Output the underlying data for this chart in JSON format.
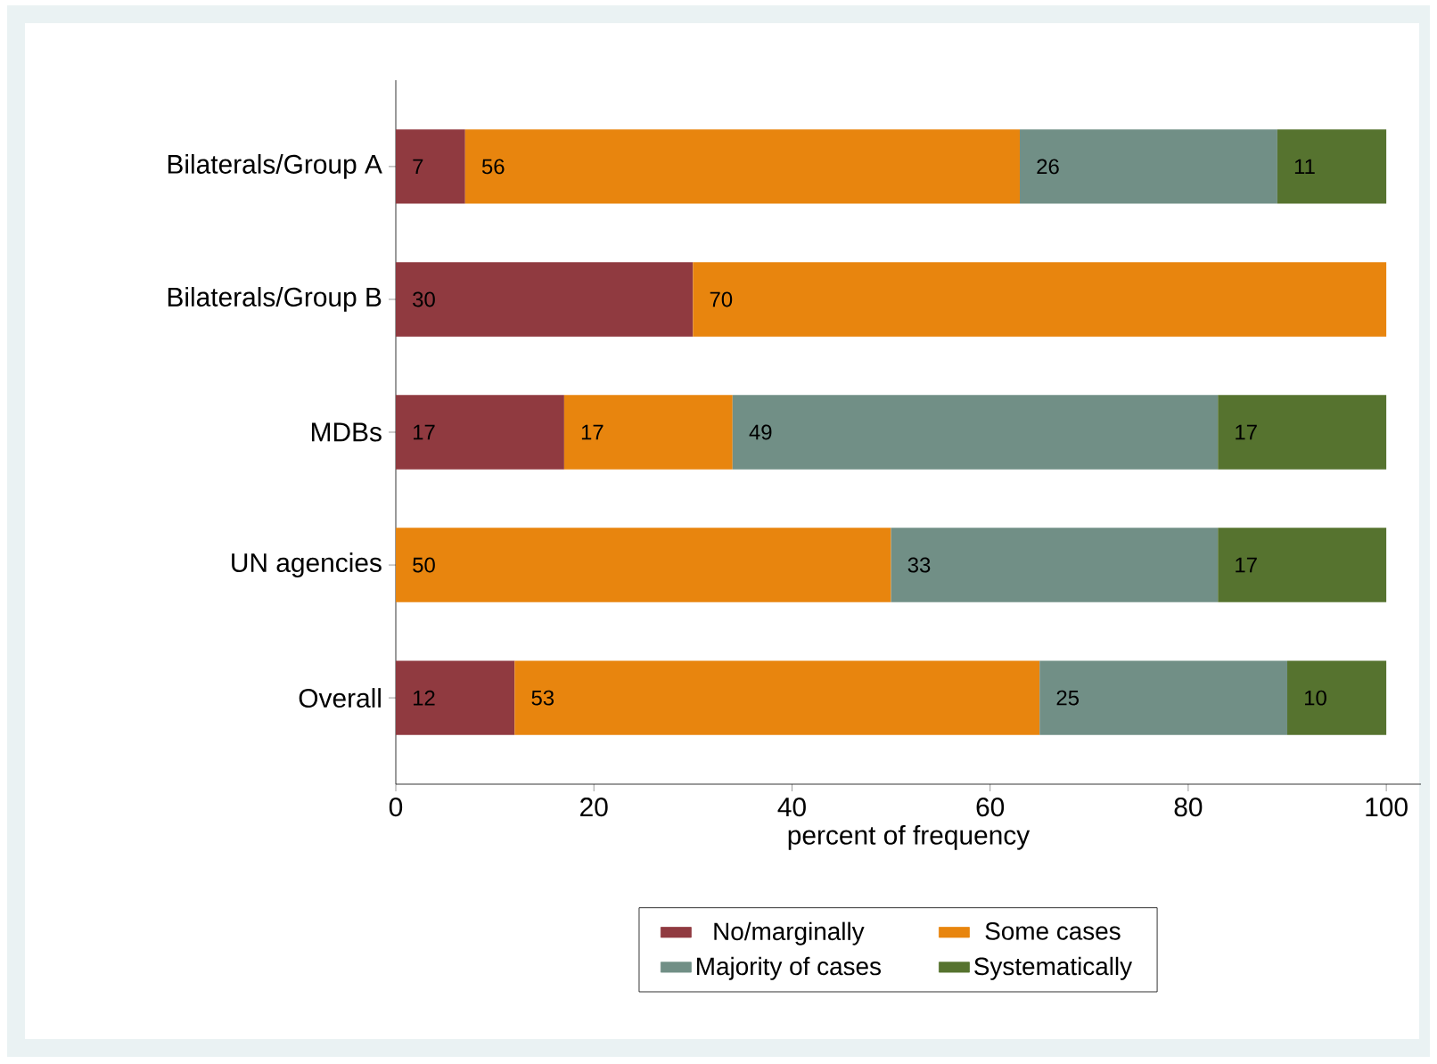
{
  "chart_data": {
    "type": "bar",
    "orientation": "horizontal",
    "stacked": true,
    "legend": "bottom",
    "grid": false,
    "xlabel": "percent of frequency",
    "categories": [
      "Bilaterals/Group A",
      "Bilaterals/Group B",
      "MDBs",
      "UN agencies",
      "Overall"
    ],
    "xlim": [
      0,
      103.5
    ],
    "xticks": [
      0,
      20,
      40,
      60,
      80,
      100
    ],
    "series": [
      {
        "name": "No/marginally",
        "color": "#903a40",
        "values": [
          7,
          30,
          17,
          null,
          12
        ],
        "value_labels": [
          "7",
          "30",
          "17",
          null,
          "12"
        ]
      },
      {
        "name": "Some cases",
        "color": "#e8850e",
        "values": [
          56,
          70,
          17,
          50,
          53
        ],
        "value_labels": [
          "56",
          "70",
          "17",
          "50",
          "53"
        ]
      },
      {
        "name": "Majority of cases",
        "color": "#718f86",
        "values": [
          26,
          null,
          49,
          33,
          25
        ],
        "value_labels": [
          "26",
          null,
          "49",
          "33",
          "25"
        ]
      },
      {
        "name": "Systematically",
        "color": "#56732f",
        "values": [
          11,
          null,
          17,
          17,
          10
        ],
        "value_labels": [
          "11",
          null,
          "17",
          "17",
          "10"
        ]
      }
    ]
  }
}
